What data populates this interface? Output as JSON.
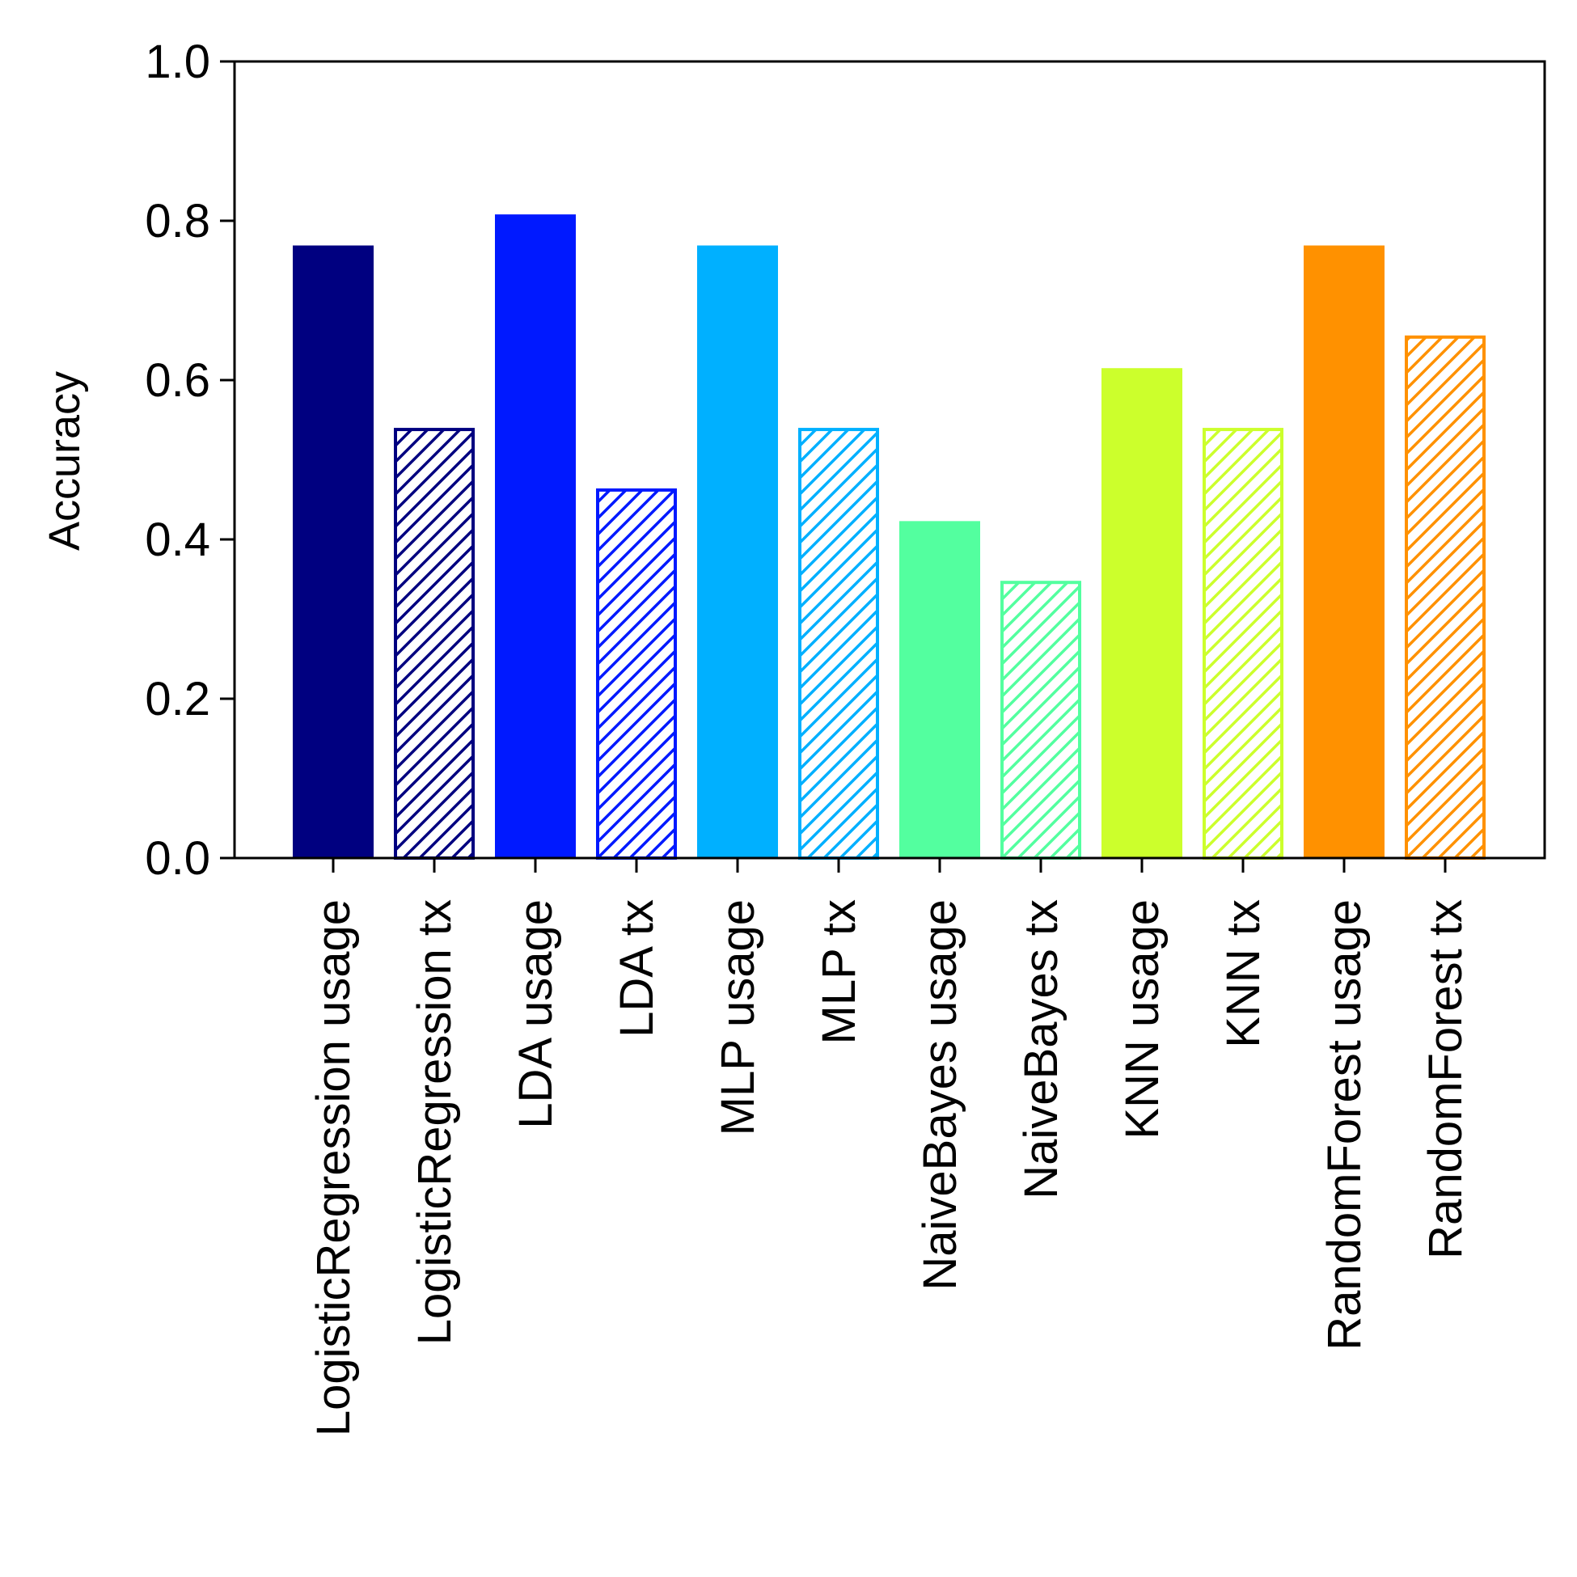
{
  "chart_data": {
    "type": "bar",
    "title": "",
    "xlabel": "",
    "ylabel": "Accuracy",
    "ylim": [
      0,
      1.0
    ],
    "yticks": [
      "0.0",
      "0.2",
      "0.4",
      "0.6",
      "0.8",
      "1.0"
    ],
    "grid": false,
    "categories": [
      "LogisticRegression usage",
      "LogisticRegression tx",
      "LDA usage",
      "LDA tx",
      "MLP usage",
      "MLP tx",
      "NaiveBayes usage",
      "NaiveBayes tx",
      "KNN usage",
      "KNN tx",
      "RandomForest usage",
      "RandomForest tx"
    ],
    "values": [
      0.769,
      0.538,
      0.808,
      0.462,
      0.769,
      0.538,
      0.423,
      0.346,
      0.615,
      0.538,
      0.769,
      0.654
    ],
    "hatched": [
      false,
      true,
      false,
      true,
      false,
      true,
      false,
      true,
      false,
      true,
      false,
      true
    ],
    "colors": [
      "#000080",
      "#000080",
      "#0019ff",
      "#0019ff",
      "#00b0ff",
      "#00b0ff",
      "#53ff9f",
      "#53ff9f",
      "#ccff2c",
      "#ccff2c",
      "#ff9100",
      "#ff9100"
    ]
  }
}
